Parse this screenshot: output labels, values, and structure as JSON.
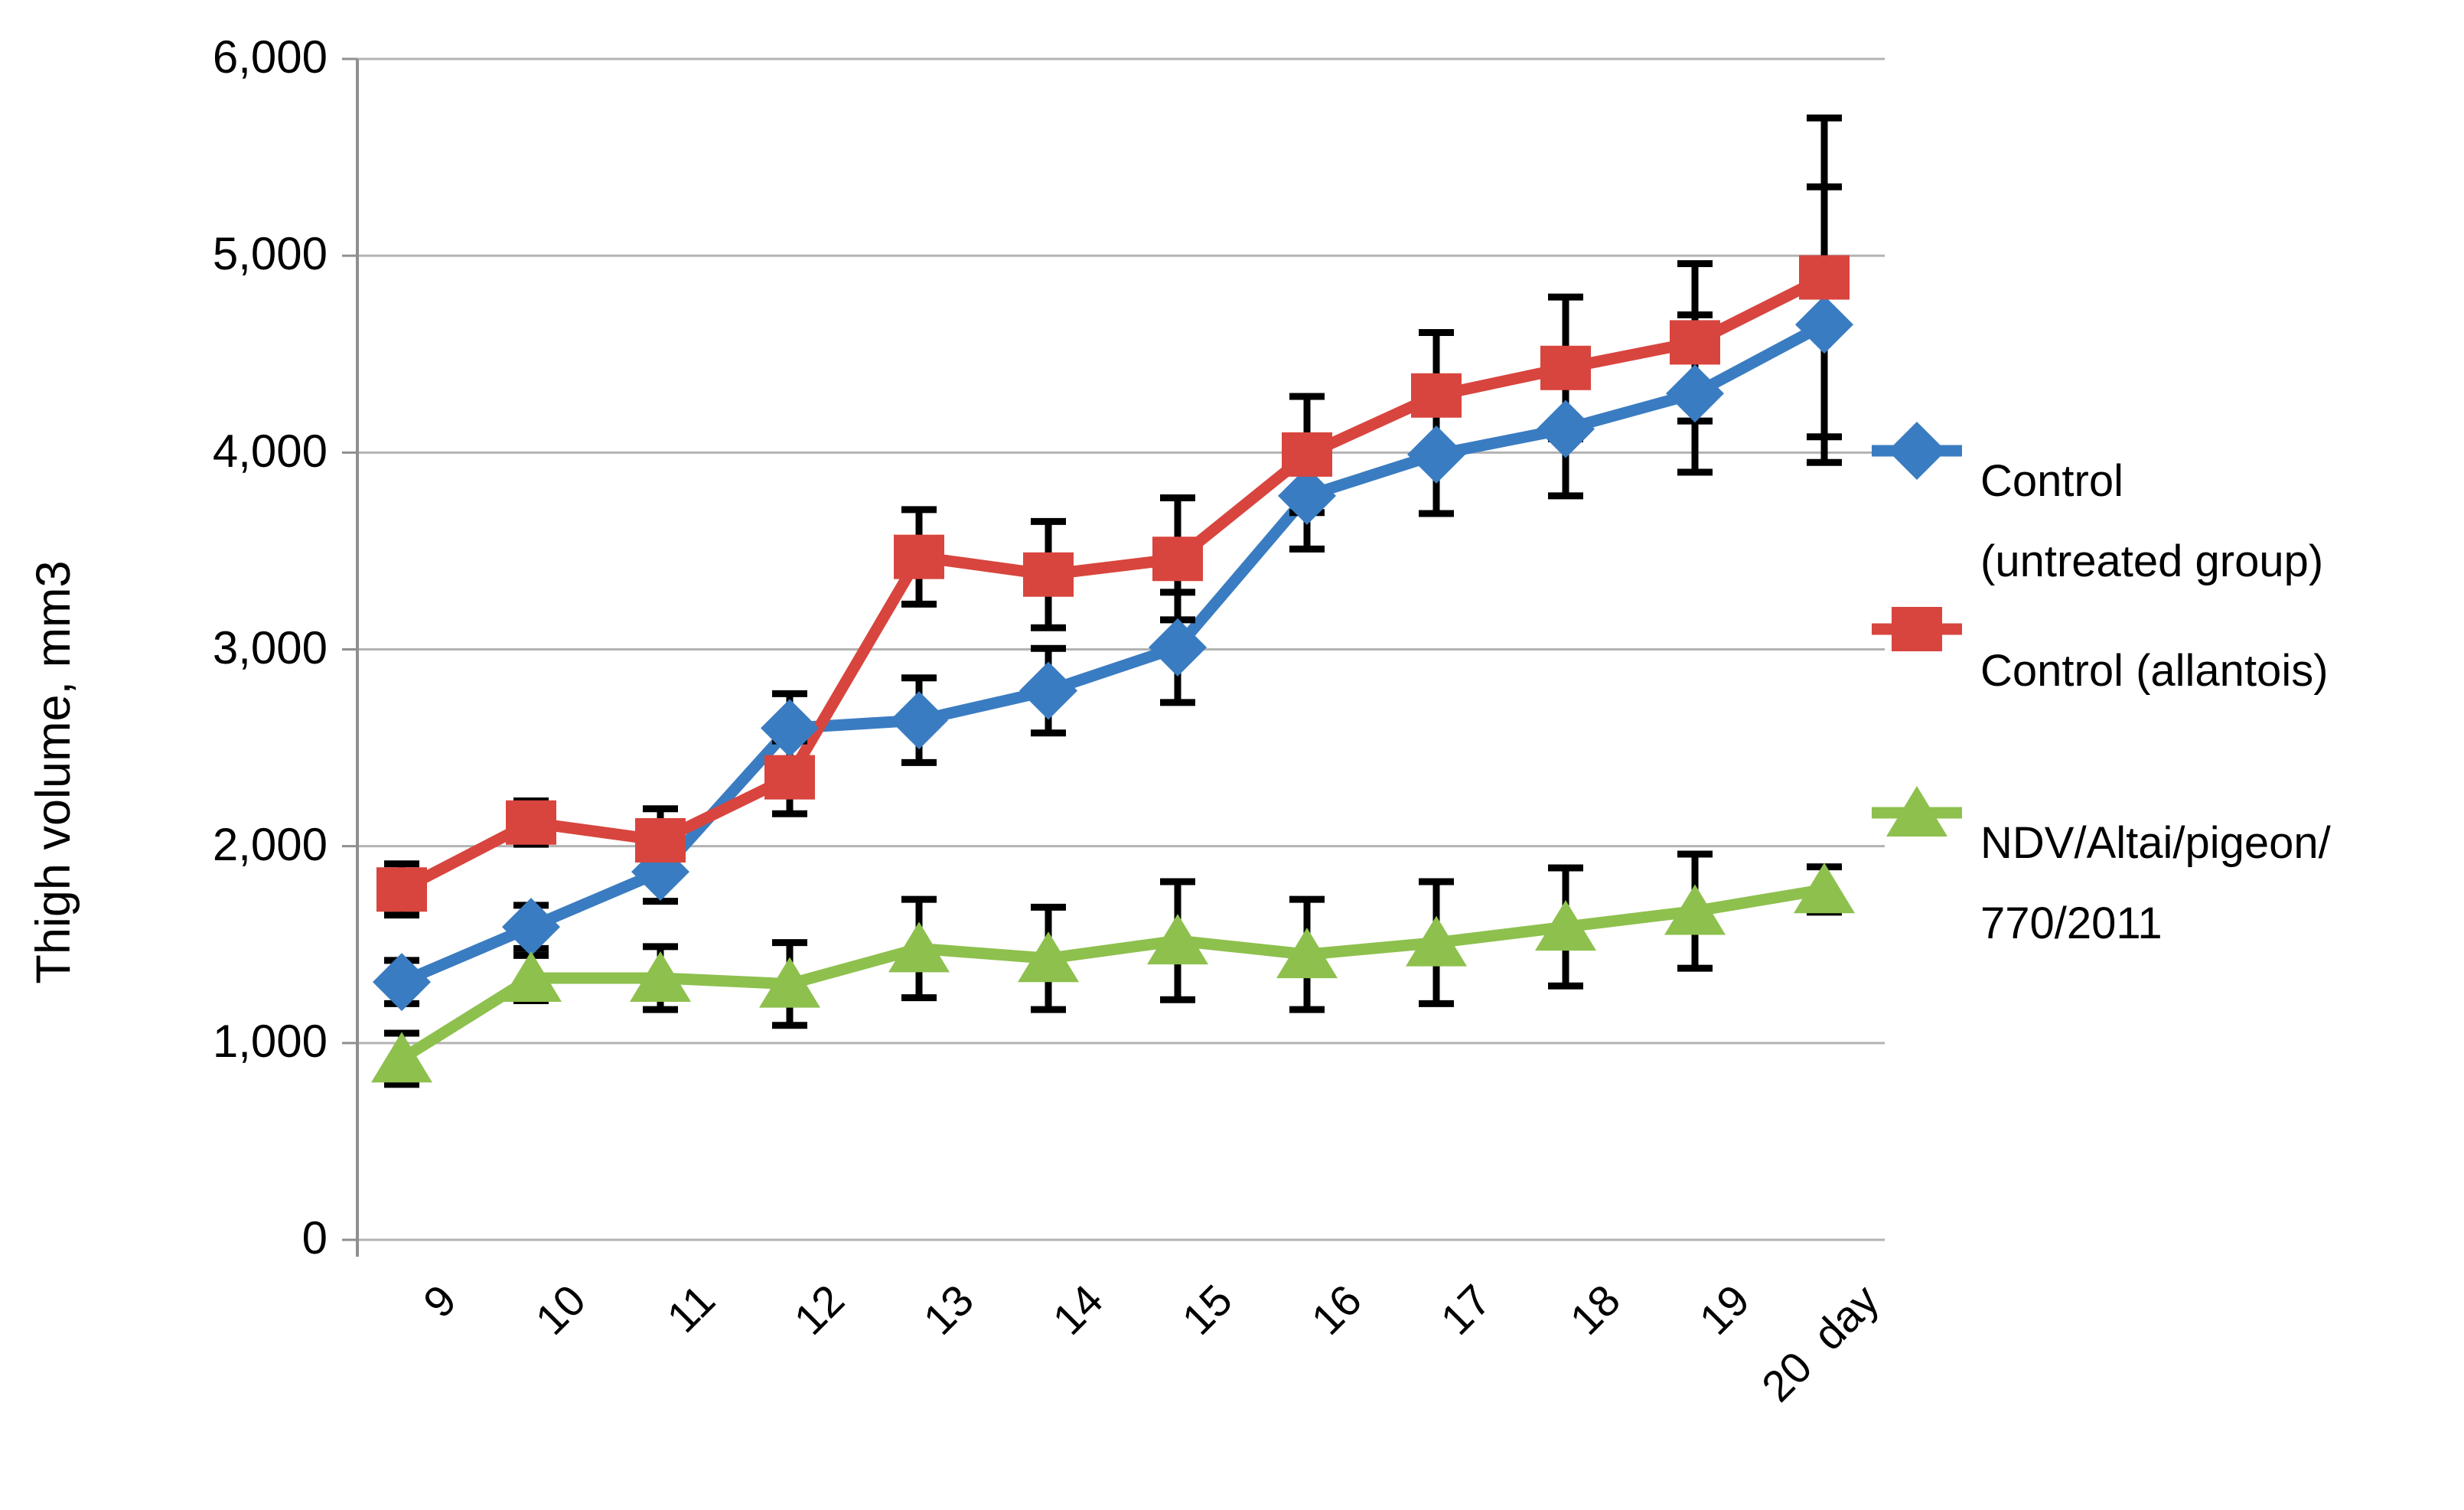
{
  "chart_data": {
    "type": "line",
    "title": "",
    "ylabel": "Thigh volume, mm3",
    "xlabel": "",
    "x_unit_label": "day",
    "categories": [
      9,
      10,
      11,
      12,
      13,
      14,
      15,
      16,
      17,
      18,
      19,
      20
    ],
    "x_tick_labels": [
      "9",
      "10",
      "11",
      "12",
      "13",
      "14",
      "15",
      "16",
      "17",
      "18",
      "19",
      "20  day"
    ],
    "ylim": [
      0,
      6000
    ],
    "ytick_interval": 1000,
    "ytick_labels": [
      "0",
      "1,000",
      "2,000",
      "3,000",
      "4,000",
      "5,000",
      "6,000"
    ],
    "grid": true,
    "legend_position": "right",
    "colors": {
      "background": "#ffffff",
      "gridline": "#b3b3b3",
      "axis": "#8f8f8f",
      "error_bar": "#000000",
      "text": "#000000"
    },
    "series": [
      {
        "name": "Control (untreated group)",
        "legend_lines": [
          "Control",
          "(untreated group)"
        ],
        "marker": "diamond",
        "color": "#3a7cc1",
        "values": [
          1310,
          1590,
          1870,
          2600,
          2640,
          2790,
          3010,
          3780,
          3990,
          4120,
          4300,
          4650
        ],
        "errors": [
          110,
          110,
          150,
          175,
          215,
          215,
          280,
          270,
          300,
          340,
          400,
          700
        ]
      },
      {
        "name": "Control (allantois)",
        "legend_lines": [
          "Control (allantois)"
        ],
        "marker": "square",
        "color": "#d8453e",
        "values": [
          1780,
          2120,
          2030,
          2350,
          3470,
          3380,
          3460,
          3990,
          4290,
          4430,
          4560,
          4890
        ],
        "errors": [
          130,
          110,
          160,
          185,
          240,
          270,
          310,
          295,
          320,
          360,
          400,
          810
        ]
      },
      {
        "name": "NDV/Altai/pigeon/770/2011",
        "legend_lines": [
          "NDV/Altai/pigeon/",
          "770/2011"
        ],
        "marker": "triangle-up",
        "color": "#8ec04e",
        "values": [
          920,
          1330,
          1330,
          1300,
          1480,
          1430,
          1520,
          1450,
          1510,
          1590,
          1670,
          1780
        ],
        "errors": [
          130,
          115,
          160,
          210,
          250,
          260,
          300,
          280,
          310,
          300,
          290,
          115
        ]
      }
    ]
  }
}
